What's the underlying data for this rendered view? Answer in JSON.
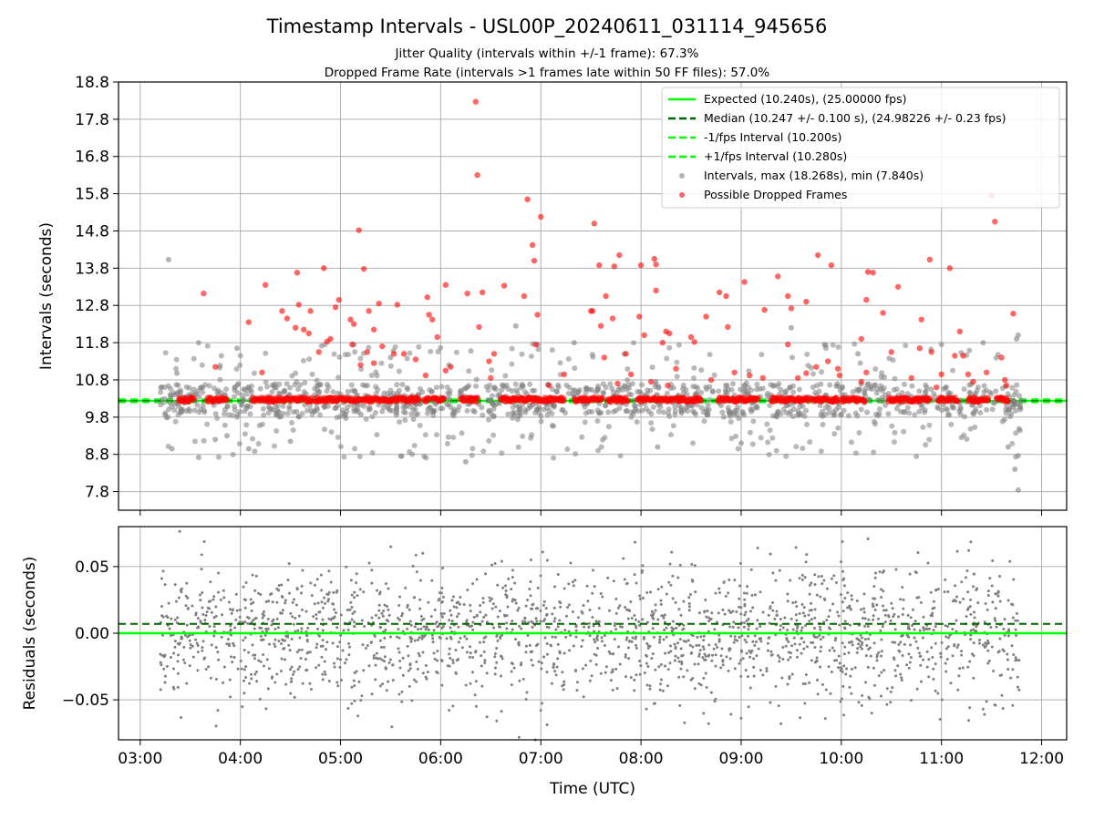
{
  "chart_data": [
    {
      "panel": "top",
      "type": "scatter",
      "title": "Timestamp Intervals - USL00P_20240611_031114_945656",
      "subtitle_lines": [
        "Jitter Quality (intervals within +/-1 frame): 67.3%",
        "Dropped Frame Rate (intervals >1 frames late within 50 FF files): 57.0%"
      ],
      "xlabel": "",
      "ylabel": "Intervals (seconds)",
      "x_axis_type": "time",
      "xlim": [
        "02:47",
        "12:15"
      ],
      "ylim": [
        7.3,
        18.8
      ],
      "yticks": [
        7.8,
        8.8,
        9.8,
        10.8,
        11.8,
        12.8,
        13.8,
        14.8,
        15.8,
        16.8,
        17.8,
        18.8
      ],
      "grid": true,
      "legend_position": "top-right",
      "lines": {
        "expected": {
          "value": 10.24,
          "color": "#00ff00",
          "style": "solid",
          "legend": "Expected (10.240s), (25.00000 fps)"
        },
        "median": {
          "value": 10.247,
          "color": "#006400",
          "style": "dashed",
          "legend": "Median (10.247 +/- 0.100 s), (24.98226 +/- 0.23 fps)"
        },
        "minus_interval": {
          "value": 10.2,
          "color": "#00ff00",
          "style": "dashed",
          "legend": "-1/fps Interval (10.200s)"
        },
        "plus_interval": {
          "value": 10.28,
          "color": "#00ff00",
          "style": "dashed",
          "legend": "+1/fps Interval (10.280s)"
        }
      },
      "series": [
        {
          "name": "Intervals, max (18.268s), min (7.840s)",
          "color": "#808080",
          "dense_time_range": [
            "03:12",
            "11:48"
          ],
          "value_ranges": [
            [
              9.8,
              10.7
            ],
            [
              8.7,
              11.8
            ]
          ],
          "points": [
            [
              "03:17",
              14.03
            ],
            [
              "03:22",
              10.98
            ],
            [
              "03:27",
              10.25
            ],
            [
              "03:28",
              10.26
            ],
            [
              "03:35",
              11.8
            ],
            [
              "03:35",
              8.72
            ],
            [
              "03:19",
              8.95
            ],
            [
              "03:45",
              9.2
            ],
            [
              "03:52",
              9.3
            ],
            [
              "03:58",
              11.65
            ],
            [
              "04:02",
              10.55
            ],
            [
              "04:05",
              8.95
            ],
            [
              "04:30",
              9.15
            ],
            [
              "05:30",
              11.4
            ],
            [
              "06:05",
              11.2
            ],
            [
              "06:15",
              8.6
            ],
            [
              "06:45",
              12.25
            ],
            [
              "07:20",
              11.8
            ],
            [
              "07:50",
              11.5
            ],
            [
              "08:10",
              9.0
            ],
            [
              "09:00",
              9.1
            ],
            [
              "09:30",
              12.2
            ],
            [
              "10:10",
              11.5
            ],
            [
              "11:00",
              11.75
            ],
            [
              "11:25",
              11.8
            ],
            [
              "11:40",
              9.0
            ],
            [
              "11:44",
              8.4
            ],
            [
              "11:45",
              11.9
            ],
            [
              "11:46",
              12.0
            ],
            [
              "11:46",
              7.84
            ]
          ]
        },
        {
          "name": "Possible Dropped Frames",
          "color": "#ff0000",
          "baseline_value": 10.27,
          "baseline_segments": [
            [
              "03:23",
              "03:32"
            ],
            [
              "03:40",
              "03:52"
            ],
            [
              "04:07",
              "04:22"
            ],
            [
              "04:23",
              "04:43"
            ],
            [
              "04:45",
              "05:47"
            ],
            [
              "05:50",
              "05:53"
            ],
            [
              "05:55",
              "06:02"
            ],
            [
              "06:12",
              "06:22"
            ],
            [
              "06:36",
              "07:14"
            ],
            [
              "07:20",
              "07:37"
            ],
            [
              "07:40",
              "07:52"
            ],
            [
              "07:58",
              "08:36"
            ],
            [
              "08:46",
              "09:10"
            ],
            [
              "09:18",
              "09:40"
            ],
            [
              "09:42",
              "09:58"
            ],
            [
              "10:00",
              "10:14"
            ],
            [
              "10:28",
              "10:53"
            ],
            [
              "10:58",
              "11:10"
            ],
            [
              "11:16",
              "11:28"
            ],
            [
              "11:33",
              "11:40"
            ]
          ],
          "points": [
            [
              "06:21",
              18.27
            ],
            [
              "06:22",
              16.3
            ],
            [
              "11:30",
              15.75
            ],
            [
              "11:32",
              15.05
            ],
            [
              "06:52",
              15.65
            ],
            [
              "07:00",
              15.18
            ],
            [
              "07:32",
              15.0
            ],
            [
              "06:55",
              14.42
            ],
            [
              "06:56",
              14.0
            ],
            [
              "07:35",
              13.88
            ],
            [
              "07:47",
              14.15
            ],
            [
              "07:44",
              13.85
            ],
            [
              "08:00",
              13.88
            ],
            [
              "08:08",
              14.05
            ],
            [
              "08:09",
              13.9
            ],
            [
              "09:46",
              14.15
            ],
            [
              "09:54",
              13.88
            ],
            [
              "10:16",
              13.7
            ],
            [
              "10:19",
              13.68
            ],
            [
              "10:53",
              14.03
            ],
            [
              "11:05",
              13.8
            ],
            [
              "05:11",
              14.82
            ],
            [
              "05:14",
              13.78
            ],
            [
              "04:50",
              13.8
            ],
            [
              "04:34",
              13.68
            ],
            [
              "04:15",
              13.35
            ],
            [
              "03:38",
              13.12
            ],
            [
              "06:03",
              13.35
            ],
            [
              "06:16",
              13.12
            ],
            [
              "06:38",
              13.33
            ],
            [
              "06:50",
              13.05
            ],
            [
              "07:39",
              13.05
            ],
            [
              "08:09",
              13.2
            ],
            [
              "08:47",
              13.15
            ],
            [
              "08:51",
              13.05
            ],
            [
              "09:02",
              13.43
            ],
            [
              "09:22",
              13.58
            ],
            [
              "09:28",
              13.05
            ],
            [
              "09:39",
              12.9
            ],
            [
              "10:34",
              13.3
            ],
            [
              "10:15",
              12.95
            ],
            [
              "11:43",
              12.58
            ],
            [
              "04:05",
              12.35
            ],
            [
              "04:25",
              12.65
            ],
            [
              "04:28",
              12.45
            ],
            [
              "04:35",
              12.82
            ],
            [
              "04:42",
              12.65
            ],
            [
              "04:38",
              12.15
            ],
            [
              "04:41",
              12.05
            ],
            [
              "04:57",
              12.75
            ],
            [
              "04:59",
              12.95
            ],
            [
              "05:06",
              12.42
            ],
            [
              "05:08",
              12.3
            ],
            [
              "05:17",
              12.65
            ],
            [
              "05:23",
              12.85
            ],
            [
              "05:20",
              12.15
            ],
            [
              "05:34",
              12.82
            ],
            [
              "05:53",
              12.55
            ],
            [
              "05:55",
              12.42
            ],
            [
              "05:52",
              13.02
            ],
            [
              "06:25",
              13.15
            ],
            [
              "06:23",
              12.22
            ],
            [
              "06:58",
              12.55
            ],
            [
              "07:30",
              12.65
            ],
            [
              "07:31",
              12.65
            ],
            [
              "07:36",
              12.25
            ],
            [
              "07:43",
              12.45
            ],
            [
              "07:59",
              12.5
            ],
            [
              "08:15",
              12.1
            ],
            [
              "08:17",
              12.05
            ],
            [
              "08:39",
              12.5
            ],
            [
              "08:52",
              12.22
            ],
            [
              "09:14",
              12.68
            ],
            [
              "09:30",
              12.72
            ],
            [
              "10:25",
              12.6
            ],
            [
              "10:48",
              12.42
            ],
            [
              "11:11",
              12.1
            ],
            [
              "04:33",
              12.2
            ],
            [
              "04:52",
              11.83
            ],
            [
              "04:54",
              11.9
            ],
            [
              "05:07",
              11.75
            ],
            [
              "05:16",
              11.55
            ],
            [
              "05:25",
              11.7
            ],
            [
              "05:32",
              11.5
            ],
            [
              "05:38",
              11.5
            ],
            [
              "05:58",
              11.95
            ],
            [
              "05:45",
              11.35
            ],
            [
              "06:32",
              11.5
            ],
            [
              "06:29",
              11.3
            ],
            [
              "06:57",
              11.75
            ],
            [
              "07:38",
              11.4
            ],
            [
              "07:51",
              11.5
            ],
            [
              "08:02",
              12.0
            ],
            [
              "08:13",
              11.8
            ],
            [
              "08:30",
              11.95
            ],
            [
              "08:32",
              11.82
            ],
            [
              "08:56",
              11.0
            ],
            [
              "09:28",
              11.75
            ],
            [
              "09:45",
              11.15
            ],
            [
              "09:52",
              11.3
            ],
            [
              "09:58",
              11.1
            ],
            [
              "10:12",
              11.9
            ],
            [
              "10:15",
              11.0
            ],
            [
              "10:30",
              11.55
            ],
            [
              "10:47",
              11.65
            ],
            [
              "10:54",
              11.55
            ],
            [
              "11:08",
              11.45
            ],
            [
              "11:13",
              11.45
            ],
            [
              "11:27",
              11.0
            ],
            [
              "11:36",
              11.4
            ],
            [
              "03:45",
              11.15
            ],
            [
              "04:13",
              11.0
            ],
            [
              "04:47",
              11.55
            ],
            [
              "05:12",
              11.2
            ],
            [
              "05:20",
              11.25
            ],
            [
              "05:51",
              10.92
            ],
            [
              "06:03",
              11.05
            ],
            [
              "06:06",
              11.15
            ],
            [
              "07:14",
              10.95
            ],
            [
              "07:54",
              10.95
            ],
            [
              "08:06",
              10.75
            ],
            [
              "08:21",
              11.1
            ],
            [
              "08:42",
              10.8
            ],
            [
              "09:05",
              10.92
            ],
            [
              "09:13",
              10.85
            ],
            [
              "09:34",
              10.85
            ],
            [
              "09:39",
              10.98
            ],
            [
              "09:59",
              10.92
            ],
            [
              "10:12",
              10.75
            ],
            [
              "10:42",
              10.85
            ],
            [
              "11:00",
              10.95
            ],
            [
              "11:16",
              10.95
            ],
            [
              "11:19",
              10.75
            ],
            [
              "11:38",
              10.8
            ],
            [
              "06:30",
              10.85
            ],
            [
              "07:05",
              10.65
            ],
            [
              "07:46",
              10.7
            ],
            [
              "08:16",
              10.65
            ],
            [
              "10:57",
              10.6
            ],
            [
              "11:39",
              10.65
            ]
          ]
        }
      ]
    },
    {
      "panel": "bottom",
      "type": "scatter",
      "xlabel": "Time (UTC)",
      "ylabel": "Residuals (seconds)",
      "x_axis_type": "time",
      "xlim": [
        "02:47",
        "12:15"
      ],
      "ylim": [
        -0.08,
        0.08
      ],
      "xticks": [
        "03:00",
        "04:00",
        "05:00",
        "06:00",
        "07:00",
        "08:00",
        "09:00",
        "10:00",
        "11:00",
        "12:00"
      ],
      "yticks": [
        0.05,
        0.0,
        -0.05
      ],
      "ytick_labels": [
        "0.05",
        "0.00",
        "−0.05"
      ],
      "grid": true,
      "lines": {
        "zero": {
          "value": 0.0,
          "color": "#00ff00",
          "style": "solid"
        },
        "median_offset": {
          "value": 0.007,
          "color": "#006400",
          "style": "dashed"
        }
      },
      "series": [
        {
          "color": "#808080",
          "time_range": [
            "03:12",
            "11:47"
          ],
          "value_range": [
            -0.08,
            0.08
          ],
          "typical_spread": 0.025
        }
      ]
    }
  ],
  "colors": {
    "expected": "#00ff00",
    "median": "#006400",
    "intervals": "#808080",
    "dropped": "#ff0000",
    "grid": "#b0b0b0"
  }
}
